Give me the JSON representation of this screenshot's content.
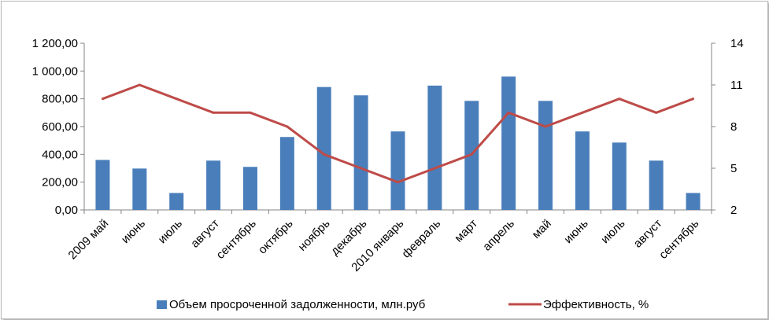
{
  "chart_data": {
    "type": "bar",
    "categories": [
      "2009  май",
      "июнь",
      "июль",
      "август",
      "сентябрь",
      "октябрь",
      "ноябрь",
      "декабрь",
      "2010  январь",
      "февраль",
      "март",
      "апрель",
      "май",
      "июнь",
      "июль",
      "август",
      "сентябрь"
    ],
    "series": [
      {
        "name": "Объем просроченной задолженности, млн.руб",
        "type": "bar",
        "axis": "left",
        "color": "#4a7ebb",
        "values": [
          360,
          298,
          122,
          355,
          310,
          525,
          885,
          825,
          565,
          895,
          785,
          960,
          785,
          565,
          485,
          355,
          122
        ]
      },
      {
        "name": "Эффективность, %",
        "type": "line",
        "axis": "right",
        "color": "#be4b48",
        "values": [
          10,
          11,
          10,
          9,
          9,
          8,
          6,
          5,
          4,
          5,
          6,
          9,
          8,
          9,
          10,
          9,
          10
        ]
      }
    ],
    "y_left": {
      "ylim": [
        0,
        1200
      ],
      "ticks": [
        "0,00",
        "200,00",
        "400,00",
        "600,00",
        "800,00",
        "1 000,00",
        "1 200,00"
      ]
    },
    "y_right": {
      "ylim": [
        2,
        14
      ],
      "ticks": [
        "2",
        "5",
        "8",
        "11",
        "14"
      ]
    },
    "grid": false,
    "legend": "bottom"
  }
}
